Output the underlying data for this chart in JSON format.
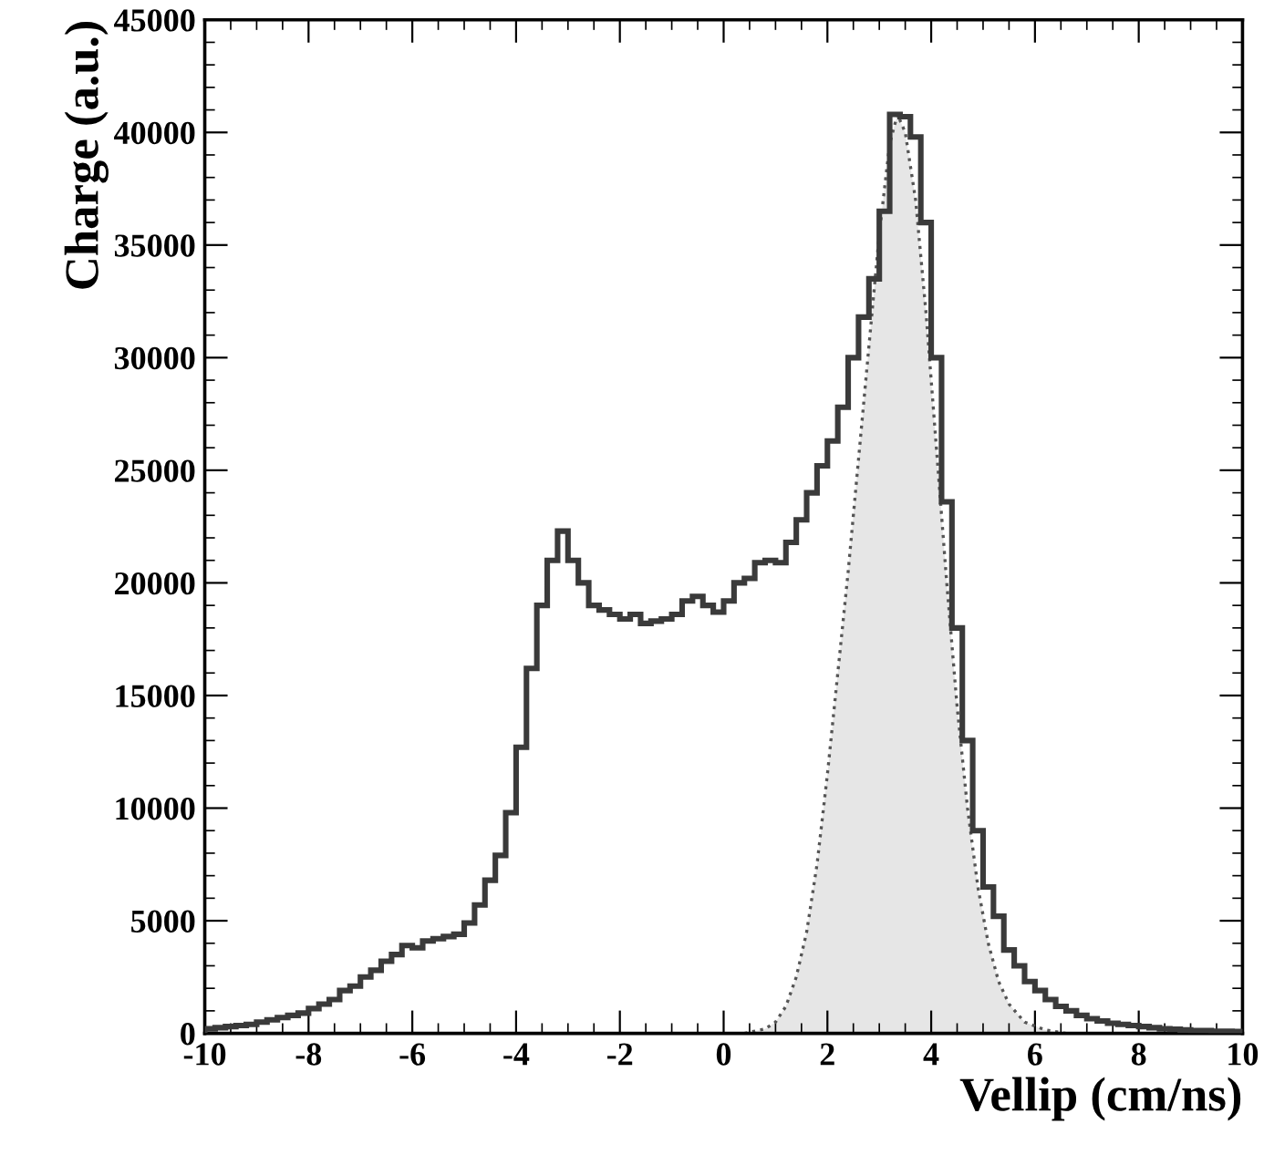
{
  "chart_data": {
    "type": "histogram",
    "xlabel": "Vellip (cm/ns)",
    "ylabel": "Charge (a.u.)",
    "xlim": [
      -10,
      10
    ],
    "ylim": [
      0,
      45000
    ],
    "xticks": [
      -10,
      -8,
      -6,
      -4,
      -2,
      0,
      2,
      4,
      6,
      8,
      10
    ],
    "yticks": [
      0,
      5000,
      10000,
      15000,
      20000,
      25000,
      30000,
      35000,
      40000,
      45000
    ],
    "grid": false,
    "series": [
      {
        "color": "#3a3a3a",
        "bins": [
          -10,
          -9.8,
          -9.6,
          -9.4,
          -9.2,
          -9.0,
          -8.8,
          -8.6,
          -8.4,
          -8.2,
          -8.0,
          -7.8,
          -7.6,
          -7.4,
          -7.2,
          -7.0,
          -6.8,
          -6.6,
          -6.4,
          -6.2,
          -6.0,
          -5.8,
          -5.6,
          -5.4,
          -5.2,
          -5.0,
          -4.8,
          -4.6,
          -4.4,
          -4.2,
          -4.0,
          -3.8,
          -3.6,
          -3.4,
          -3.2,
          -3.0,
          -2.8,
          -2.6,
          -2.4,
          -2.2,
          -2.0,
          -1.8,
          -1.6,
          -1.4,
          -1.2,
          -1.0,
          -0.8,
          -0.6,
          -0.4,
          -0.2,
          0.0,
          0.2,
          0.4,
          0.6,
          0.8,
          1.0,
          1.2,
          1.4,
          1.6,
          1.8,
          2.0,
          2.2,
          2.4,
          2.6,
          2.8,
          3.0,
          3.2,
          3.4,
          3.6,
          3.8,
          4.0,
          4.2,
          4.4,
          4.6,
          4.8,
          5.0,
          5.2,
          5.4,
          5.6,
          5.8,
          6.0,
          6.2,
          6.4,
          6.6,
          6.8,
          7.0,
          7.2,
          7.4,
          7.6,
          7.8,
          8.0,
          8.2,
          8.4,
          8.6,
          8.8,
          9.0,
          9.2,
          9.4,
          9.6,
          9.8,
          10
        ],
        "values": [
          200,
          250,
          300,
          350,
          400,
          500,
          600,
          700,
          800,
          900,
          1100,
          1300,
          1500,
          1900,
          2100,
          2500,
          2800,
          3200,
          3500,
          3900,
          3800,
          4100,
          4200,
          4300,
          4400,
          4900,
          5700,
          6800,
          7900,
          9800,
          12700,
          16200,
          19000,
          21000,
          22300,
          21000,
          20000,
          19000,
          18800,
          18600,
          18400,
          18600,
          18200,
          18300,
          18400,
          18600,
          19200,
          19400,
          19000,
          18700,
          19200,
          20000,
          20200,
          20900,
          21000,
          20900,
          21800,
          22800,
          24000,
          25200,
          26300,
          27800,
          30000,
          31800,
          33500,
          36500,
          40800,
          40700,
          39800,
          36000,
          30000,
          23600,
          18000,
          13000,
          9000,
          6500,
          5200,
          3700,
          3000,
          2300,
          1900,
          1500,
          1200,
          1000,
          800,
          650,
          550,
          450,
          400,
          350,
          300,
          250,
          200,
          180,
          150,
          130,
          120,
          100,
          90,
          80
        ]
      },
      {
        "type": "area",
        "color": "#555555",
        "line_style": "dotted",
        "x": [
          0.4,
          0.8,
          1.0,
          1.2,
          1.4,
          1.6,
          1.8,
          2.0,
          2.2,
          2.4,
          2.6,
          2.8,
          3.0,
          3.2,
          3.35,
          3.5,
          3.7,
          3.9,
          4.1,
          4.3,
          4.5,
          4.7,
          4.9,
          5.1,
          5.3,
          5.5,
          5.8,
          6.2,
          6.6
        ],
        "values": [
          0,
          200,
          500,
          1200,
          2500,
          4500,
          7500,
          11500,
          16000,
          20500,
          25500,
          30500,
          35500,
          39500,
          40800,
          40000,
          37000,
          32000,
          26000,
          20000,
          14500,
          10000,
          6500,
          4000,
          2300,
          1300,
          500,
          150,
          0
        ]
      }
    ]
  }
}
